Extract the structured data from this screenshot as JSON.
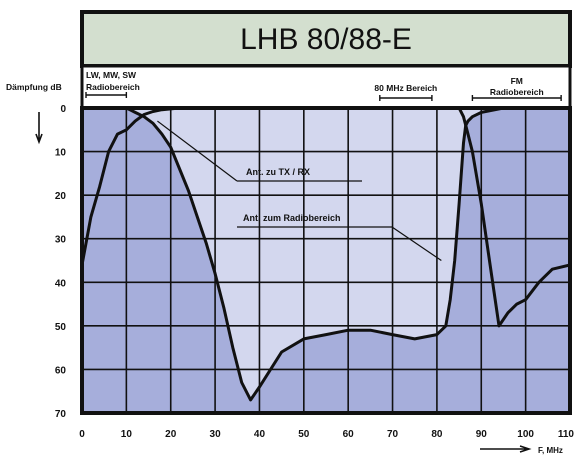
{
  "chart_data": {
    "type": "line",
    "title": "LHB 80/88-E",
    "xlabel": "F, MHz",
    "ylabel": "Dämpfung dB",
    "x_ticks": [
      "0",
      "10",
      "20",
      "30",
      "40",
      "50",
      "60",
      "70",
      "80",
      "90",
      "100",
      "110"
    ],
    "y_ticks": [
      "0",
      "10",
      "20",
      "30",
      "40",
      "50",
      "60",
      "70"
    ],
    "xlim": [
      0,
      110
    ],
    "ylim": [
      0,
      70
    ],
    "y_inverted": true,
    "grid": true,
    "colors": {
      "frame": "#111111",
      "title_bg": "#d3dfcf",
      "grid_bg": "#a6aedb",
      "tx_fill": "#d3d7ee",
      "curve": "#111111"
    },
    "bands": [
      {
        "label": "LW, MW, SW",
        "label2": "Radiobereich",
        "from": 0,
        "to": 10
      },
      {
        "label": "80 MHz Bereich",
        "from": 66,
        "to": 80
      },
      {
        "label": "FM",
        "label2": "Radiobereich",
        "from": 88,
        "to": 108
      }
    ],
    "annotations": [
      {
        "text": "Ant. zu TX / RX",
        "target_x": 17,
        "target_y": 3
      },
      {
        "text": "Ant. zum Radiobereich",
        "target_x": 81,
        "target_y": 35
      }
    ],
    "series": [
      {
        "key": "tx",
        "label": "Ant. zu TX / RX",
        "x": [
          0,
          2,
          4,
          6,
          8,
          10,
          11,
          12,
          14,
          16,
          18,
          20,
          22,
          24,
          26,
          28,
          30,
          32,
          34,
          36,
          38,
          40,
          45,
          50,
          55,
          60,
          65,
          70,
          75,
          80,
          82,
          83,
          84,
          85,
          86,
          86.5,
          87,
          88,
          90,
          95,
          100,
          105,
          110
        ],
        "y": [
          0,
          0,
          0,
          0,
          0,
          0,
          0.5,
          1,
          2,
          3.5,
          6,
          9,
          14,
          19,
          25,
          31,
          38,
          46,
          55,
          63,
          67,
          64,
          56,
          53,
          52,
          51,
          51,
          52,
          53,
          52,
          50,
          44,
          35,
          22,
          8,
          4,
          3,
          2,
          1,
          0,
          0,
          0,
          0
        ]
      },
      {
        "key": "radio",
        "label": "Ant. zum Radiobereich",
        "x": [
          0,
          2,
          4,
          6,
          8,
          10,
          12,
          14,
          16,
          18,
          20,
          22,
          25,
          28,
          30,
          32,
          34,
          35,
          36,
          38,
          40,
          42,
          45,
          48,
          50,
          52,
          55,
          58,
          60,
          62,
          64,
          66,
          68,
          70,
          72,
          73,
          74,
          75,
          76,
          78,
          80,
          81,
          82,
          83,
          83.5,
          84,
          84.5,
          85,
          86,
          87,
          88,
          90,
          92,
          94,
          96,
          98,
          100,
          103,
          106,
          110
        ],
        "y": [
          36,
          25,
          18,
          10,
          6,
          5,
          3,
          1.5,
          0.8,
          0.4,
          0.2,
          0,
          0,
          0,
          0,
          0,
          0,
          0,
          0,
          0,
          0,
          0,
          0,
          0,
          0,
          0,
          0,
          0,
          0,
          0,
          0,
          0,
          0,
          0,
          0,
          0,
          0,
          0,
          0,
          0,
          0,
          0,
          0,
          0,
          0,
          0,
          0,
          0,
          2,
          6,
          10,
          22,
          36,
          50,
          47,
          45,
          44,
          40,
          37,
          36
        ]
      }
    ]
  }
}
